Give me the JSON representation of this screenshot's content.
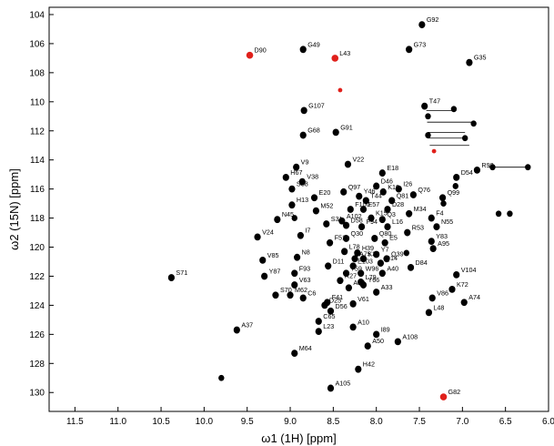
{
  "chart_data": {
    "type": "scatter",
    "title": "",
    "xlabel": "ω1 (1H) [ppm]",
    "ylabel": "ω2 (15N) [ppm]",
    "xlim": [
      11.8,
      6.0
    ],
    "ylim": [
      103.5,
      131.3
    ],
    "x_reversed": true,
    "y_reversed": true,
    "grid": false,
    "x_ticks": [
      "11.5",
      "11.0",
      "10.5",
      "10.0",
      "9.5",
      "9.0",
      "8.5",
      "8.0",
      "7.5",
      "7.0",
      "6.5",
      "6.0"
    ],
    "y_ticks": [
      "104",
      "106",
      "108",
      "110",
      "112",
      "114",
      "116",
      "118",
      "120",
      "122",
      "124",
      "126",
      "128",
      "130"
    ],
    "colors": {
      "peak": "#000000",
      "highlight": "#e0201b"
    },
    "highlighted_peaks": [
      {
        "label": "D90",
        "x": 9.47,
        "y": 106.8
      },
      {
        "label": "L43",
        "x": 8.48,
        "y": 107.0
      },
      {
        "label": "G82",
        "x": 7.22,
        "y": 130.3
      },
      {
        "label": "",
        "x": 7.33,
        "y": 113.4
      },
      {
        "label": "",
        "x": 8.42,
        "y": 109.2
      }
    ],
    "peaks": [
      {
        "label": "G92",
        "x": 7.47,
        "y": 104.7
      },
      {
        "label": "G49",
        "x": 8.85,
        "y": 106.4
      },
      {
        "label": "G73",
        "x": 7.62,
        "y": 106.4
      },
      {
        "label": "G35",
        "x": 6.92,
        "y": 107.3
      },
      {
        "label": "T47",
        "x": 7.44,
        "y": 110.3
      },
      {
        "label": "G107",
        "x": 8.84,
        "y": 110.6
      },
      {
        "label": "G91",
        "x": 8.47,
        "y": 112.1
      },
      {
        "label": "G68",
        "x": 8.85,
        "y": 112.3
      },
      {
        "label": "V22",
        "x": 8.33,
        "y": 114.3
      },
      {
        "label": "V9",
        "x": 8.93,
        "y": 114.5
      },
      {
        "label": "E18",
        "x": 7.93,
        "y": 114.9
      },
      {
        "label": "H67",
        "x": 9.05,
        "y": 115.2
      },
      {
        "label": "V38",
        "x": 8.86,
        "y": 115.5
      },
      {
        "label": "D54",
        "x": 7.07,
        "y": 115.2
      },
      {
        "label": "D46",
        "x": 8.0,
        "y": 115.8
      },
      {
        "label": "S88",
        "x": 8.98,
        "y": 116.0
      },
      {
        "label": "I26",
        "x": 7.74,
        "y": 116.0
      },
      {
        "label": "Q97",
        "x": 8.38,
        "y": 116.2
      },
      {
        "label": "K10",
        "x": 7.92,
        "y": 116.2
      },
      {
        "label": "Y46",
        "x": 8.2,
        "y": 116.5
      },
      {
        "label": "E20",
        "x": 8.72,
        "y": 116.6
      },
      {
        "label": "Q76",
        "x": 7.57,
        "y": 116.4
      },
      {
        "label": "R98",
        "x": 6.83,
        "y": 114.7
      },
      {
        "label": "T44",
        "x": 8.12,
        "y": 116.8
      },
      {
        "label": "Q81",
        "x": 7.82,
        "y": 116.8
      },
      {
        "label": "Q99",
        "x": 7.23,
        "y": 116.6
      },
      {
        "label": "H13",
        "x": 8.98,
        "y": 117.1
      },
      {
        "label": "M52",
        "x": 8.7,
        "y": 117.5
      },
      {
        "label": "F100",
        "x": 8.3,
        "y": 117.4
      },
      {
        "label": "E57",
        "x": 8.15,
        "y": 117.4
      },
      {
        "label": "D28",
        "x": 7.87,
        "y": 117.4
      },
      {
        "label": "M34",
        "x": 7.62,
        "y": 117.7
      },
      {
        "label": "K15",
        "x": 8.06,
        "y": 118.0
      },
      {
        "label": "Q3",
        "x": 7.93,
        "y": 118.1
      },
      {
        "label": "A102",
        "x": 8.4,
        "y": 118.2
      },
      {
        "label": "F4",
        "x": 7.36,
        "y": 118.0
      },
      {
        "label": "N45",
        "x": 9.15,
        "y": 118.1
      },
      {
        "label": "S31",
        "x": 8.58,
        "y": 118.4
      },
      {
        "label": "D58",
        "x": 8.35,
        "y": 118.5
      },
      {
        "label": "F94",
        "x": 8.17,
        "y": 118.6
      },
      {
        "label": "L16",
        "x": 7.87,
        "y": 118.6
      },
      {
        "label": "N55",
        "x": 7.3,
        "y": 118.6
      },
      {
        "label": "R53",
        "x": 7.64,
        "y": 119.0
      },
      {
        "label": "I7",
        "x": 8.88,
        "y": 119.2
      },
      {
        "label": "V24",
        "x": 9.38,
        "y": 119.3
      },
      {
        "label": "Q30",
        "x": 8.35,
        "y": 119.4
      },
      {
        "label": "Q80",
        "x": 8.02,
        "y": 119.4
      },
      {
        "label": "F51",
        "x": 8.54,
        "y": 119.7
      },
      {
        "label": "E5",
        "x": 7.9,
        "y": 119.7
      },
      {
        "label": "Y83",
        "x": 7.36,
        "y": 119.6
      },
      {
        "label": "A95",
        "x": 7.34,
        "y": 120.1
      },
      {
        "label": "L78",
        "x": 8.37,
        "y": 120.3
      },
      {
        "label": "H39",
        "x": 8.22,
        "y": 120.4
      },
      {
        "label": "Y7",
        "x": 8.0,
        "y": 120.5
      },
      {
        "label": "N8",
        "x": 8.92,
        "y": 120.7
      },
      {
        "label": "A75",
        "x": 8.25,
        "y": 120.8
      },
      {
        "label": "K32",
        "x": 8.15,
        "y": 120.8
      },
      {
        "label": "Q39",
        "x": 7.88,
        "y": 120.8
      },
      {
        "label": "V85",
        "x": 9.32,
        "y": 120.9
      },
      {
        "label": "Q14",
        "x": 7.95,
        "y": 121.1
      },
      {
        "label": "D11",
        "x": 8.56,
        "y": 121.3
      },
      {
        "label": "E103",
        "x": 8.27,
        "y": 121.3
      },
      {
        "label": "D84",
        "x": 7.6,
        "y": 121.4
      },
      {
        "label": "F93",
        "x": 8.95,
        "y": 121.8
      },
      {
        "label": "T59",
        "x": 8.35,
        "y": 121.8
      },
      {
        "label": "W96",
        "x": 8.18,
        "y": 121.8
      },
      {
        "label": "A40",
        "x": 7.93,
        "y": 121.8
      },
      {
        "label": "Y87",
        "x": 9.3,
        "y": 122.0
      },
      {
        "label": "S71",
        "x": 10.38,
        "y": 122.1
      },
      {
        "label": "V104",
        "x": 7.07,
        "y": 121.9
      },
      {
        "label": "R27",
        "x": 8.42,
        "y": 122.3
      },
      {
        "label": "V63",
        "x": 8.95,
        "y": 122.6
      },
      {
        "label": "A12",
        "x": 8.32,
        "y": 122.8
      },
      {
        "label": "L79",
        "x": 8.18,
        "y": 122.4
      },
      {
        "label": "Y66",
        "x": 8.15,
        "y": 122.6
      },
      {
        "label": "K72",
        "x": 7.12,
        "y": 122.9
      },
      {
        "label": "S70",
        "x": 9.17,
        "y": 123.3
      },
      {
        "label": "M62",
        "x": 9.0,
        "y": 123.3
      },
      {
        "label": "C6",
        "x": 8.85,
        "y": 123.5
      },
      {
        "label": "A33",
        "x": 8.0,
        "y": 123.1
      },
      {
        "label": "V86",
        "x": 7.35,
        "y": 123.5
      },
      {
        "label": "F41",
        "x": 8.57,
        "y": 123.8
      },
      {
        "label": "D25",
        "x": 8.6,
        "y": 124.0
      },
      {
        "label": "V61",
        "x": 8.27,
        "y": 123.9
      },
      {
        "label": "A74",
        "x": 6.98,
        "y": 123.8
      },
      {
        "label": "D56",
        "x": 8.53,
        "y": 124.4
      },
      {
        "label": "L48",
        "x": 7.39,
        "y": 124.5
      },
      {
        "label": "C65",
        "x": 8.67,
        "y": 125.1
      },
      {
        "label": "A10",
        "x": 8.27,
        "y": 125.5
      },
      {
        "label": "A37",
        "x": 9.62,
        "y": 125.7
      },
      {
        "label": "L23",
        "x": 8.67,
        "y": 125.8
      },
      {
        "label": "I89",
        "x": 8.0,
        "y": 126.0
      },
      {
        "label": "A108",
        "x": 7.75,
        "y": 126.5
      },
      {
        "label": "A50",
        "x": 8.1,
        "y": 126.8
      },
      {
        "label": "M64",
        "x": 8.95,
        "y": 127.3
      },
      {
        "label": "H42",
        "x": 8.21,
        "y": 128.4
      },
      {
        "label": "A105",
        "x": 8.53,
        "y": 129.7
      }
    ],
    "unlabeled_peaks": [
      {
        "x": 9.8,
        "y": 129.0
      },
      {
        "x": 7.4,
        "y": 111.0
      },
      {
        "x": 7.4,
        "y": 112.3
      },
      {
        "x": 7.1,
        "y": 110.5
      },
      {
        "x": 6.97,
        "y": 112.5
      },
      {
        "x": 6.87,
        "y": 111.5
      },
      {
        "x": 6.58,
        "y": 117.7
      },
      {
        "x": 6.45,
        "y": 117.7
      },
      {
        "x": 6.65,
        "y": 114.5
      },
      {
        "x": 6.24,
        "y": 114.5
      },
      {
        "x": 7.22,
        "y": 117.0
      },
      {
        "x": 8.95,
        "y": 118.0
      },
      {
        "x": 7.65,
        "y": 120.4
      },
      {
        "x": 7.08,
        "y": 115.8
      }
    ],
    "sidechain_pairs": [
      {
        "x1": 7.42,
        "x2": 7.07,
        "y": 110.6
      },
      {
        "x1": 7.41,
        "x2": 6.87,
        "y": 111.4
      },
      {
        "x1": 7.4,
        "x2": 6.97,
        "y": 112.1
      },
      {
        "x1": 7.4,
        "x2": 6.95,
        "y": 112.5
      },
      {
        "x1": 7.38,
        "x2": 6.92,
        "y": 113.0
      },
      {
        "x1": 6.69,
        "x2": 6.24,
        "y": 114.5
      }
    ]
  }
}
